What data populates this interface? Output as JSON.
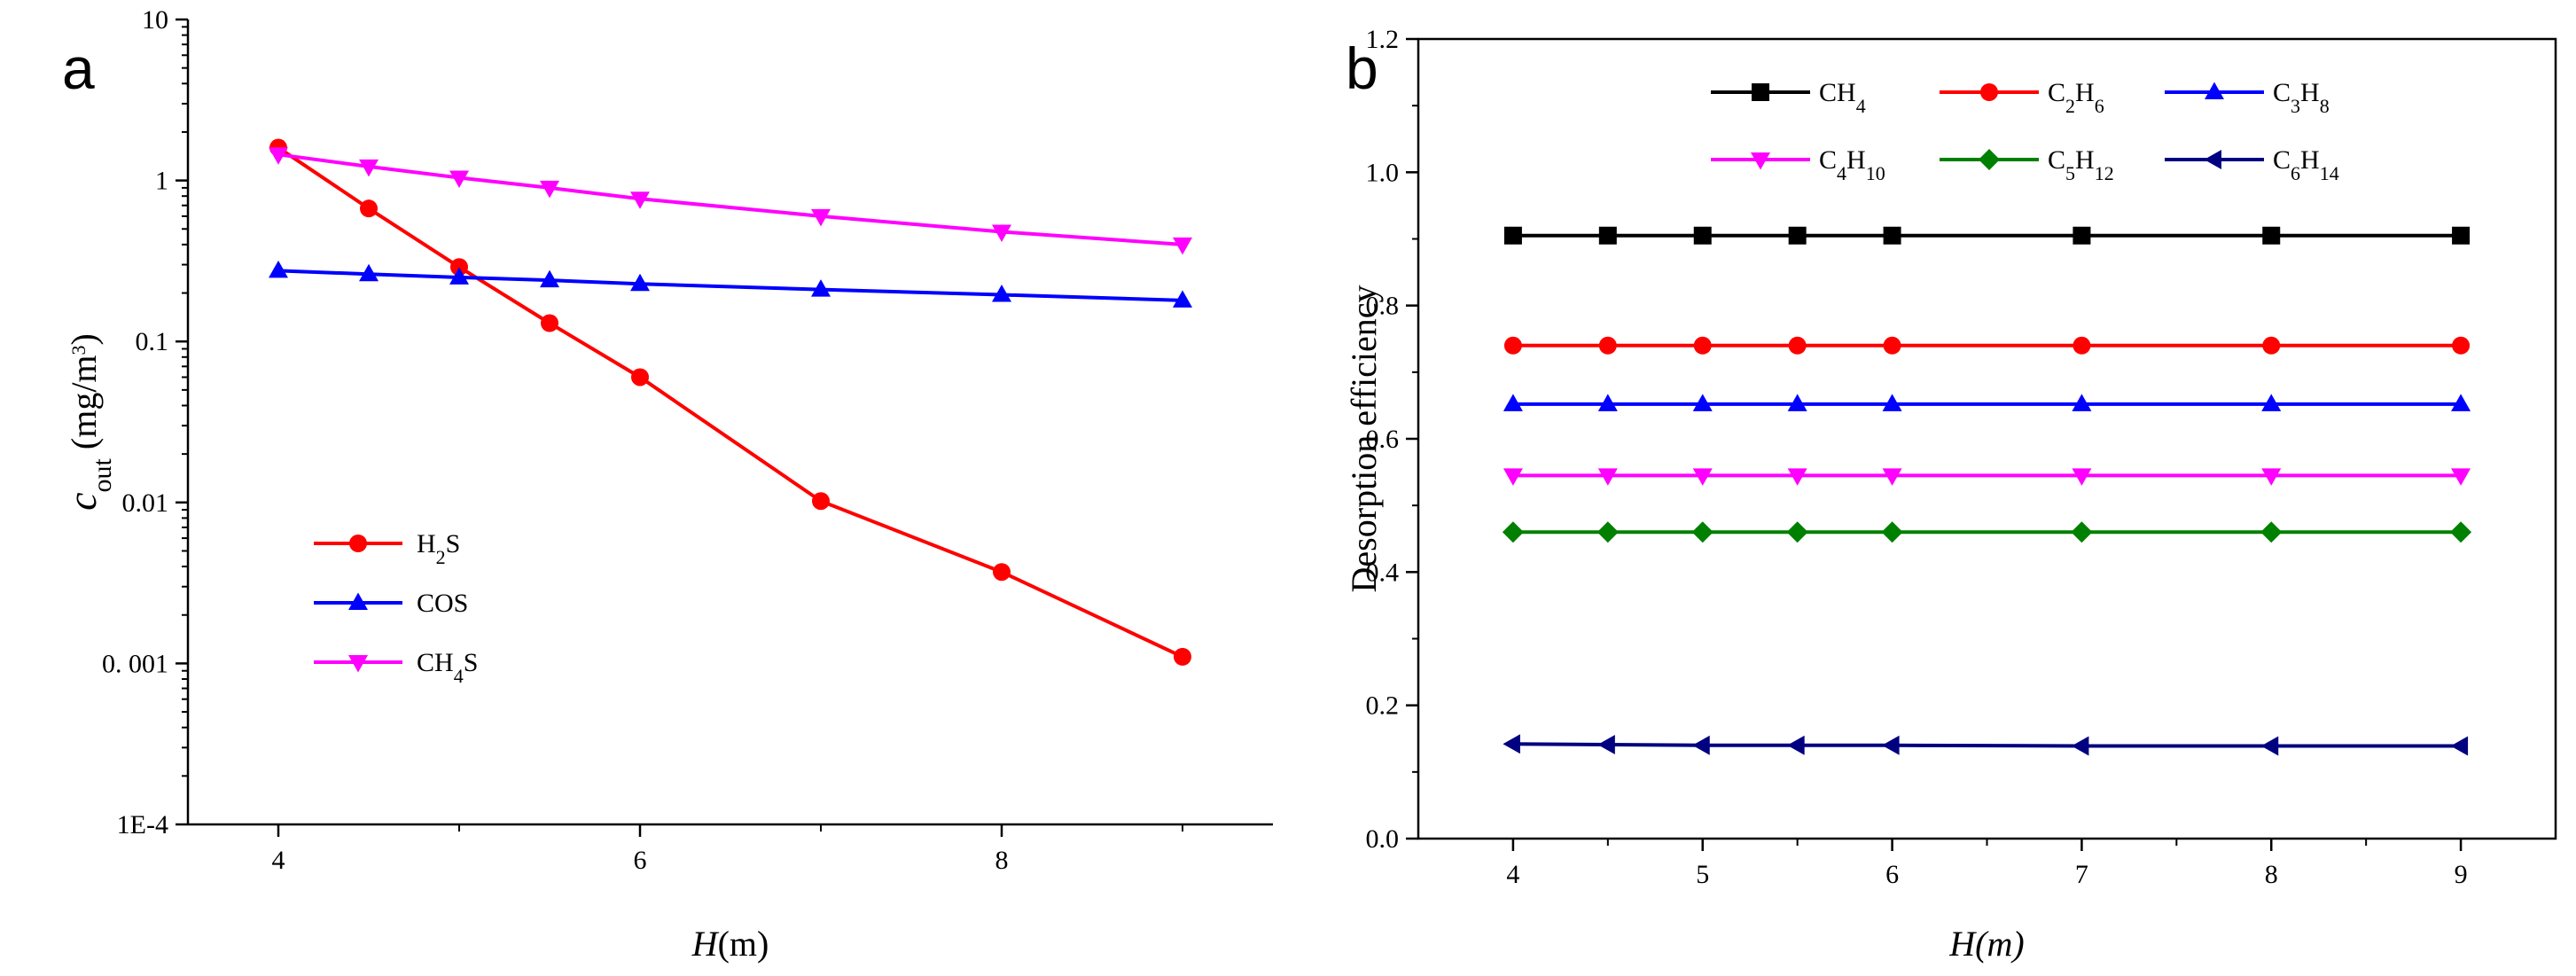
{
  "chart_data": [
    {
      "type": "line",
      "panel_label": "a",
      "yscale": "log",
      "xlabel_var": "H",
      "xlabel_unit": "(m)",
      "ylabel_var": "c",
      "ylabel_sub": "out",
      "ylabel_unit": " (mg/m",
      "ylabel_sup": "3",
      "ylabel_close": ")",
      "xlim": [
        3.5,
        9.5
      ],
      "ylim": [
        0.0001,
        10
      ],
      "xticks": [
        4,
        6,
        8
      ],
      "yticks": [
        {
          "value": 10,
          "label": "10"
        },
        {
          "value": 1,
          "label": "1"
        },
        {
          "value": 0.1,
          "label": "0.1"
        },
        {
          "value": 0.01,
          "label": "0.01"
        },
        {
          "value": 0.001,
          "label": "0. 001"
        },
        {
          "value": 0.0001,
          "label": "1E-4"
        }
      ],
      "x": [
        4,
        4.5,
        5,
        5.5,
        6,
        7,
        8,
        9
      ],
      "series": [
        {
          "name": "H2S",
          "label_parts": [
            [
              "H",
              ""
            ],
            [
              "2",
              "sub"
            ],
            [
              "S",
              ""
            ]
          ],
          "color": "#ff0000",
          "marker": "circle",
          "values": [
            1.6,
            0.67,
            0.29,
            0.13,
            0.06,
            0.0102,
            0.0037,
            0.0011
          ]
        },
        {
          "name": "COS",
          "label_parts": [
            [
              "COS",
              ""
            ]
          ],
          "color": "#0000ff",
          "marker": "triangle-up",
          "values": [
            0.275,
            0.262,
            0.25,
            0.24,
            0.228,
            0.21,
            0.195,
            0.18
          ]
        },
        {
          "name": "CH4S",
          "label_parts": [
            [
              "CH",
              ""
            ],
            [
              "4",
              "sub"
            ],
            [
              "S",
              ""
            ]
          ],
          "color": "#ff00ff",
          "marker": "triangle-down",
          "values": [
            1.45,
            1.22,
            1.04,
            0.9,
            0.77,
            0.6,
            0.48,
            0.4
          ]
        }
      ],
      "legend": "lower-left"
    },
    {
      "type": "line",
      "panel_label": "b",
      "xlabel": "H(m)",
      "ylabel": "Desorption efficiency",
      "xlim": [
        3.5,
        9.5
      ],
      "ylim": [
        0.0,
        1.2
      ],
      "xticks": [
        4,
        5,
        6,
        7,
        8,
        9
      ],
      "yticks": [
        {
          "value": 0.0,
          "label": "0.0"
        },
        {
          "value": 0.2,
          "label": "0.2"
        },
        {
          "value": 0.4,
          "label": "0.4"
        },
        {
          "value": 0.6,
          "label": "0.6"
        },
        {
          "value": 0.8,
          "label": "0.8"
        },
        {
          "value": 1.0,
          "label": "1.0"
        },
        {
          "value": 1.2,
          "label": "1.2"
        }
      ],
      "x": [
        4,
        4.5,
        5,
        5.5,
        6,
        7,
        8,
        9
      ],
      "series": [
        {
          "name": "CH4",
          "label_parts": [
            [
              "CH",
              ""
            ],
            [
              "4",
              "sub"
            ]
          ],
          "color": "#000000",
          "marker": "square",
          "values": [
            0.905,
            0.905,
            0.905,
            0.905,
            0.905,
            0.905,
            0.905,
            0.905
          ]
        },
        {
          "name": "C2H6",
          "label_parts": [
            [
              "C",
              ""
            ],
            [
              "2",
              "sub"
            ],
            [
              "H",
              ""
            ],
            [
              "6",
              "sub"
            ]
          ],
          "color": "#ff0000",
          "marker": "circle",
          "values": [
            0.74,
            0.74,
            0.74,
            0.74,
            0.74,
            0.74,
            0.74,
            0.74
          ]
        },
        {
          "name": "C3H8",
          "label_parts": [
            [
              "C",
              ""
            ],
            [
              "3",
              "sub"
            ],
            [
              "H",
              ""
            ],
            [
              "8",
              "sub"
            ]
          ],
          "color": "#0000ff",
          "marker": "triangle-up",
          "values": [
            0.652,
            0.652,
            0.652,
            0.652,
            0.652,
            0.652,
            0.652,
            0.652
          ]
        },
        {
          "name": "C4H10",
          "label_parts": [
            [
              "C",
              ""
            ],
            [
              "4",
              "sub"
            ],
            [
              "H",
              ""
            ],
            [
              "10",
              "sub"
            ]
          ],
          "color": "#ff00ff",
          "marker": "triangle-down",
          "values": [
            0.545,
            0.545,
            0.545,
            0.545,
            0.545,
            0.545,
            0.545,
            0.545
          ]
        },
        {
          "name": "C5H12",
          "label_parts": [
            [
              "C",
              ""
            ],
            [
              "5",
              "sub"
            ],
            [
              "H",
              ""
            ],
            [
              "12",
              "sub"
            ]
          ],
          "color": "#008000",
          "marker": "diamond",
          "values": [
            0.46,
            0.46,
            0.46,
            0.46,
            0.46,
            0.46,
            0.46,
            0.46
          ]
        },
        {
          "name": "C6H14",
          "label_parts": [
            [
              "C",
              ""
            ],
            [
              "6",
              "sub"
            ],
            [
              "H",
              ""
            ],
            [
              "14",
              "sub"
            ]
          ],
          "color": "#000080",
          "marker": "triangle-left",
          "values": [
            0.142,
            0.141,
            0.14,
            0.14,
            0.14,
            0.139,
            0.139,
            0.139
          ]
        }
      ],
      "legend": "top"
    }
  ]
}
